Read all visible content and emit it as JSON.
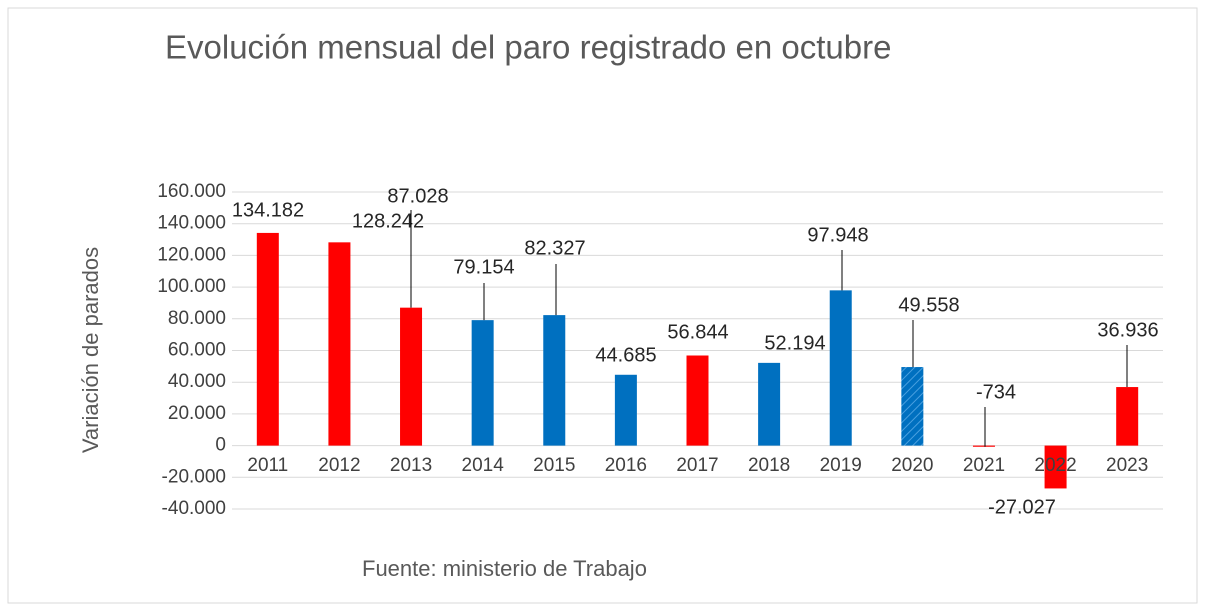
{
  "chart_data": {
    "type": "bar",
    "title": "Evolución mensual del paro registrado en octubre",
    "y_label": "Variación de parados",
    "source": "Fuente: ministerio de Trabajo",
    "categories": [
      "2011",
      "2012",
      "2013",
      "2014",
      "2015",
      "2016",
      "2017",
      "2018",
      "2019",
      "2020",
      "2021",
      "2022",
      "2023"
    ],
    "values": [
      134182,
      128242,
      87028,
      79154,
      82327,
      44685,
      56844,
      52194,
      97948,
      49558,
      -734,
      -27027,
      36936
    ],
    "value_labels": [
      "134.182",
      "128.242",
      "87.028",
      "79.154",
      "82.327",
      "44.685",
      "56.844",
      "52.194",
      "97.948",
      "49.558",
      "-734",
      "-27.027",
      "36.936"
    ],
    "colors": [
      "#ff0000",
      "#ff0000",
      "#ff0000",
      "#0070c0",
      "#0070c0",
      "#0070c0",
      "#ff0000",
      "#0070c0",
      "#0070c0",
      "#0070c0",
      "#ff0000",
      "#ff0000",
      "#ff0000"
    ],
    "hatched": [
      false,
      false,
      false,
      false,
      false,
      false,
      false,
      false,
      false,
      true,
      false,
      false,
      false
    ],
    "ylim": [
      -40000,
      160000
    ],
    "yticks": [
      {
        "value": -40000,
        "label": "-40.000"
      },
      {
        "value": -20000,
        "label": "-20.000"
      },
      0,
      {
        "value": 20000,
        "label": "20.000"
      },
      {
        "value": 40000,
        "label": "40.000"
      },
      {
        "value": 60000,
        "label": "60.000"
      },
      {
        "value": 80000,
        "label": "80.000"
      },
      {
        "value": 100000,
        "label": "100.000"
      },
      {
        "value": 120000,
        "label": "120.000"
      },
      {
        "value": 140000,
        "label": "140.000"
      },
      {
        "value": 160000,
        "label": "160.000"
      }
    ],
    "grid": true
  }
}
